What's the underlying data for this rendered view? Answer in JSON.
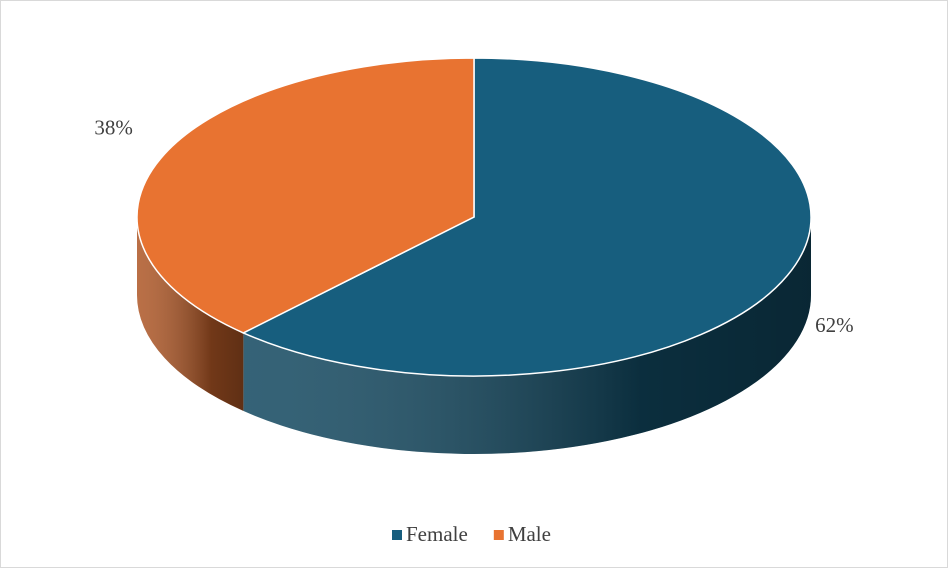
{
  "chart_data": {
    "type": "pie",
    "categories": [
      "Female",
      "Male"
    ],
    "values": [
      62,
      38
    ],
    "value_labels": [
      "62%",
      "38%"
    ],
    "colors": [
      "#175e7e",
      "#e87331"
    ],
    "legend": "bottom"
  }
}
